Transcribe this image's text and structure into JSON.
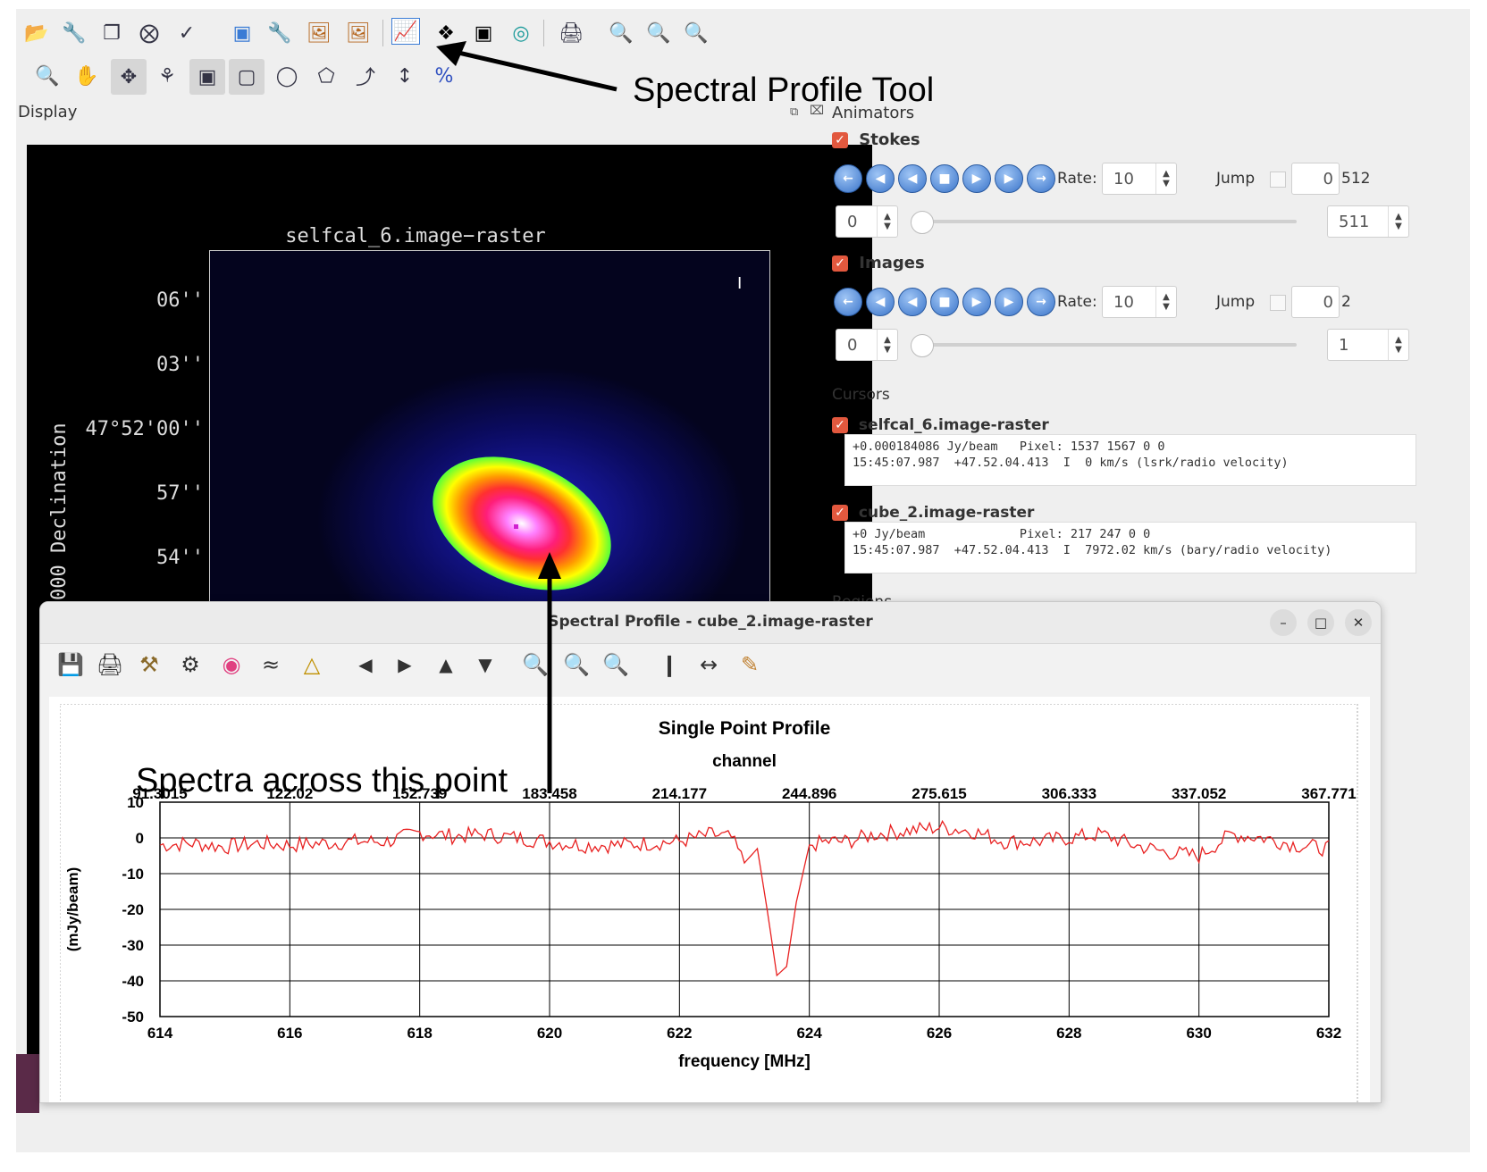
{
  "annotations": {
    "tool_label": "Spectral Profile Tool",
    "point_label": "Spectra across this point"
  },
  "main_window": {
    "display_label": "Display",
    "image_title": "selfcal_6.image−raster",
    "dec_ticks": [
      "06''",
      "03''",
      "47°52'00''",
      "57''",
      "54''"
    ],
    "dec_axis_label": "000 Declination",
    "cursor_mark": "I"
  },
  "animators": {
    "title": "Animators",
    "stokes": {
      "label": "Stokes",
      "rate_label": "Rate:",
      "rate": "10",
      "jump_label": "Jump",
      "jump_value": "0",
      "total": "512",
      "start": "0",
      "end": "511"
    },
    "images": {
      "label": "Images",
      "rate_label": "Rate:",
      "rate": "10",
      "jump_label": "Jump",
      "jump_value": "0",
      "total": "2",
      "start": "0",
      "end": "1"
    }
  },
  "cursors": {
    "title": "Cursors",
    "items": [
      {
        "name": "selfcal_6.image-raster",
        "line1": "+0.000184086 Jy/beam   Pixel: 1537 1567 0 0",
        "line2": "15:45:07.987  +47.52.04.413  I  0 km/s (lsrk/radio velocity)"
      },
      {
        "name": "cube_2.image-raster",
        "line1": "+0 Jy/beam             Pixel: 217 247 0 0",
        "line2": "15:45:07.987  +47.52.04.413  I  7972.02 km/s (bary/radio velocity)"
      }
    ],
    "regions_label": "Regions"
  },
  "spectral_window": {
    "title": "Spectral Profile - cube_2.image-raster",
    "minimize": "–",
    "maximize": "□",
    "close": "✕"
  },
  "chart_data": {
    "type": "line",
    "title": "Single Point Profile",
    "top_axis_label": "channel",
    "top_ticks": [
      "91.3015",
      "122.02",
      "152.739",
      "183.458",
      "214.177",
      "244.896",
      "275.615",
      "306.333",
      "337.052",
      "367.771"
    ],
    "xlabel": "frequency [MHz]",
    "ylabel": "(mJy/beam)",
    "xlim": [
      614,
      632
    ],
    "ylim": [
      -50,
      10
    ],
    "x_ticks": [
      "614",
      "616",
      "618",
      "620",
      "622",
      "624",
      "626",
      "628",
      "630",
      "632"
    ],
    "y_ticks": [
      "10",
      "0",
      "-10",
      "-20",
      "-30",
      "-40",
      "-50"
    ],
    "line_color": "#e82020",
    "absorption_center_mhz": 623.5,
    "absorption_min_mjy": -38.5,
    "x": [
      614.0,
      614.5,
      615.0,
      615.5,
      616.0,
      616.5,
      617.0,
      617.5,
      618.0,
      618.5,
      619.0,
      619.5,
      620.0,
      620.5,
      621.0,
      621.5,
      622.0,
      622.5,
      622.8,
      623.0,
      623.2,
      623.35,
      623.5,
      623.65,
      623.8,
      624.0,
      624.3,
      624.6,
      625.0,
      625.5,
      626.0,
      626.5,
      627.0,
      627.5,
      628.0,
      628.5,
      629.0,
      629.5,
      630.0,
      630.5,
      631.0,
      631.5,
      632.0
    ],
    "values": [
      -2,
      -1.5,
      -2.5,
      -1.5,
      -2,
      -1.5,
      -1,
      -1,
      1.5,
      0.5,
      1,
      0,
      -1,
      -2,
      -2,
      -1.5,
      -1,
      1,
      0,
      -7,
      -3,
      -20,
      -38.5,
      -36,
      -18,
      -2,
      -1,
      -1,
      1,
      2,
      3,
      2,
      -1,
      -1,
      0,
      1,
      -2,
      -4,
      -5,
      1,
      0,
      -2,
      -3
    ]
  }
}
